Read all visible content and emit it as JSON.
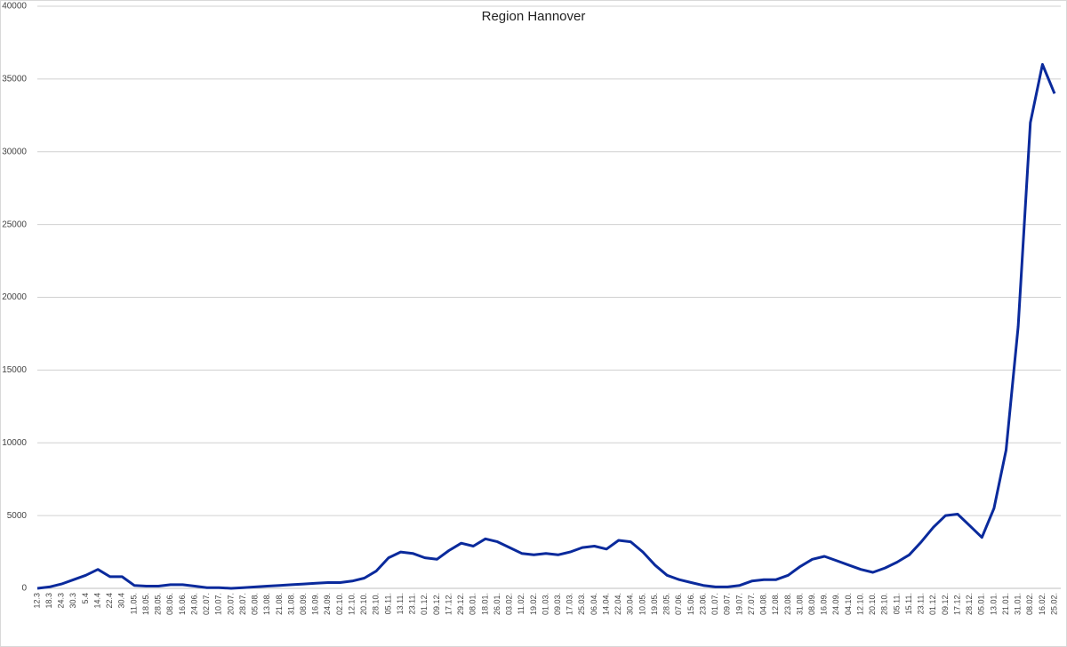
{
  "chart_data": {
    "type": "line",
    "title": "Region Hannover",
    "categories": [
      "12.3",
      "18.3",
      "24.3",
      "30.3",
      "5.4",
      "14.4",
      "22.4",
      "30.4",
      "11.05.",
      "18.05.",
      "28.05.",
      "08.06.",
      "16.06.",
      "24.06.",
      "02.07.",
      "10.07.",
      "20.07.",
      "28.07.",
      "05.08.",
      "13.08.",
      "21.08.",
      "31.08.",
      "08.09.",
      "16.09.",
      "24.09.",
      "02.10.",
      "12.10.",
      "20.10.",
      "28.10.",
      "05.11.",
      "13.11.",
      "23.11.",
      "01.12.",
      "09.12.",
      "17.12.",
      "29.12.",
      "08.01.",
      "18.01.",
      "26.01.",
      "03.02.",
      "11.02.",
      "19.02.",
      "01.03.",
      "09.03.",
      "17.03.",
      "25.03.",
      "06.04.",
      "14.04.",
      "22.04.",
      "30.04.",
      "10.05.",
      "19.05.",
      "28.05.",
      "07.06.",
      "15.06.",
      "23.06.",
      "01.07.",
      "09.07.",
      "19.07.",
      "27.07.",
      "04.08.",
      "12.08.",
      "23.08.",
      "31.08.",
      "08.09.",
      "16.09.",
      "24.09.",
      "04.10.",
      "12.10.",
      "20.10.",
      "28.10.",
      "05.11.",
      "15.11.",
      "23.11.",
      "01.12.",
      "09.12.",
      "17.12.",
      "28.12.",
      "05.01.",
      "13.01.",
      "21.01.",
      "31.01.",
      "08.02.",
      "16.02.",
      "25.02."
    ],
    "series": [
      {
        "name": "Region Hannover",
        "color": "#0a2a9c",
        "values": [
          0,
          100,
          300,
          600,
          900,
          1300,
          800,
          800,
          200,
          150,
          150,
          250,
          250,
          150,
          50,
          50,
          0,
          50,
          100,
          150,
          200,
          250,
          300,
          350,
          400,
          400,
          500,
          700,
          1200,
          2100,
          2500,
          2400,
          2100,
          2000,
          2600,
          3100,
          2900,
          3400,
          3200,
          2800,
          2400,
          2300,
          2400,
          2300,
          2500,
          2800,
          2900,
          2700,
          3300,
          3200,
          2500,
          1600,
          900,
          600,
          400,
          200,
          100,
          100,
          200,
          500,
          600,
          600,
          900,
          1500,
          2000,
          2200,
          1900,
          1600,
          1300,
          1100,
          1400,
          1800,
          2300,
          3200,
          4200,
          5000,
          5100,
          4300,
          3500,
          5500,
          9500,
          18000,
          32000,
          36000,
          34000
        ]
      }
    ],
    "ylim": [
      0,
      40000
    ],
    "yticks": [
      0,
      5000,
      10000,
      15000,
      20000,
      25000,
      30000,
      35000,
      40000
    ],
    "grid": true
  }
}
